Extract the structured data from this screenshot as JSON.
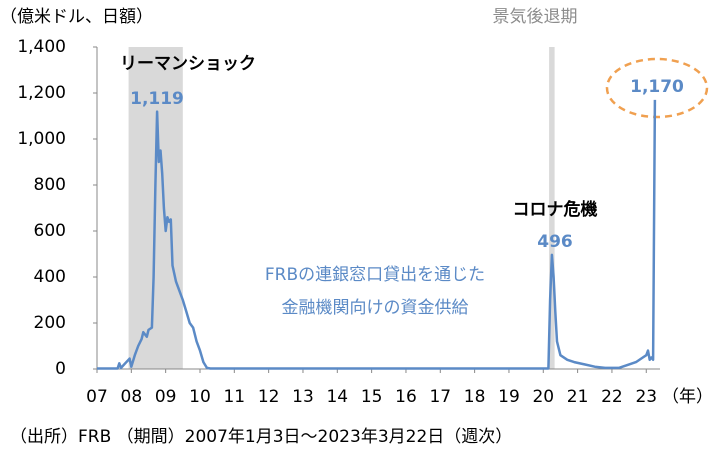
{
  "chart_data": {
    "type": "line",
    "y_label": "（億米ドル、日額）",
    "x_label": "（年）",
    "source": "（出所）FRB （期間）2007年1月3日～2023年3月22日（週次）",
    "band_label": "景気後退期",
    "shaded_periods": [
      {
        "start": 2007.92,
        "end": 2009.5
      },
      {
        "start": 2020.17,
        "end": 2020.33
      }
    ],
    "band_color": "#d9d9d9",
    "annotations": [
      "リーマンショック",
      "1,119",
      "コロナ危機",
      "496",
      "1,170",
      "FRBの連銀窓口貸出を通じた",
      "金融機関向けの資金供給"
    ],
    "xlim": [
      2007,
      2023.4
    ],
    "xticks": [
      {
        "value": 2007,
        "label": "07"
      },
      {
        "value": 2008,
        "label": "08"
      },
      {
        "value": 2009,
        "label": "09"
      },
      {
        "value": 2010,
        "label": "10"
      },
      {
        "value": 2011,
        "label": "11"
      },
      {
        "value": 2012,
        "label": "12"
      },
      {
        "value": 2013,
        "label": "13"
      },
      {
        "value": 2014,
        "label": "14"
      },
      {
        "value": 2015,
        "label": "15"
      },
      {
        "value": 2016,
        "label": "16"
      },
      {
        "value": 2017,
        "label": "17"
      },
      {
        "value": 2018,
        "label": "18"
      },
      {
        "value": 2019,
        "label": "19"
      },
      {
        "value": 2020,
        "label": "20"
      },
      {
        "value": 2021,
        "label": "21"
      },
      {
        "value": 2022,
        "label": "22"
      },
      {
        "value": 2023,
        "label": "23"
      }
    ],
    "ylim": [
      0,
      1400
    ],
    "yticks": [
      0,
      200,
      400,
      600,
      800,
      {
        "value": 1000,
        "label": "1,000"
      },
      {
        "value": 1200,
        "label": "1,200"
      },
      {
        "value": 1400,
        "label": "1,400"
      }
    ],
    "x": [
      2007,
      2007.6,
      2007.65,
      2007.7,
      2007.95,
      2008.0,
      2008.1,
      2008.2,
      2008.3,
      2008.35,
      2008.45,
      2008.5,
      2008.6,
      2008.65,
      2008.7,
      2008.75,
      2008.8,
      2008.85,
      2008.9,
      2008.95,
      2009.0,
      2009.05,
      2009.1,
      2009.15,
      2009.2,
      2009.3,
      2009.4,
      2009.5,
      2009.6,
      2009.7,
      2009.8,
      2009.9,
      2010.0,
      2010.1,
      2010.2,
      2010.3,
      2010.5,
      2020.15,
      2020.2,
      2020.25,
      2020.3,
      2020.35,
      2020.4,
      2020.5,
      2020.7,
      2020.9,
      2021.2,
      2021.5,
      2021.8,
      2022.2,
      2022.5,
      2022.7,
      2022.9,
      2023.0,
      2023.05,
      2023.1,
      2023.15,
      2023.2,
      2023.25
    ],
    "series": [
      {
        "name": "FRBの連銀窓口貸出",
        "color": "#5b8ac6",
        "values": [
          2,
          2,
          25,
          5,
          45,
          10,
          60,
          100,
          130,
          160,
          140,
          170,
          180,
          400,
          800,
          1119,
          900,
          950,
          850,
          700,
          600,
          660,
          640,
          650,
          450,
          380,
          340,
          300,
          250,
          200,
          180,
          120,
          80,
          30,
          5,
          2,
          2,
          2,
          300,
          496,
          400,
          250,
          120,
          60,
          40,
          30,
          20,
          10,
          5,
          5,
          20,
          30,
          50,
          60,
          80,
          40,
          50,
          40,
          1170
        ]
      }
    ]
  }
}
